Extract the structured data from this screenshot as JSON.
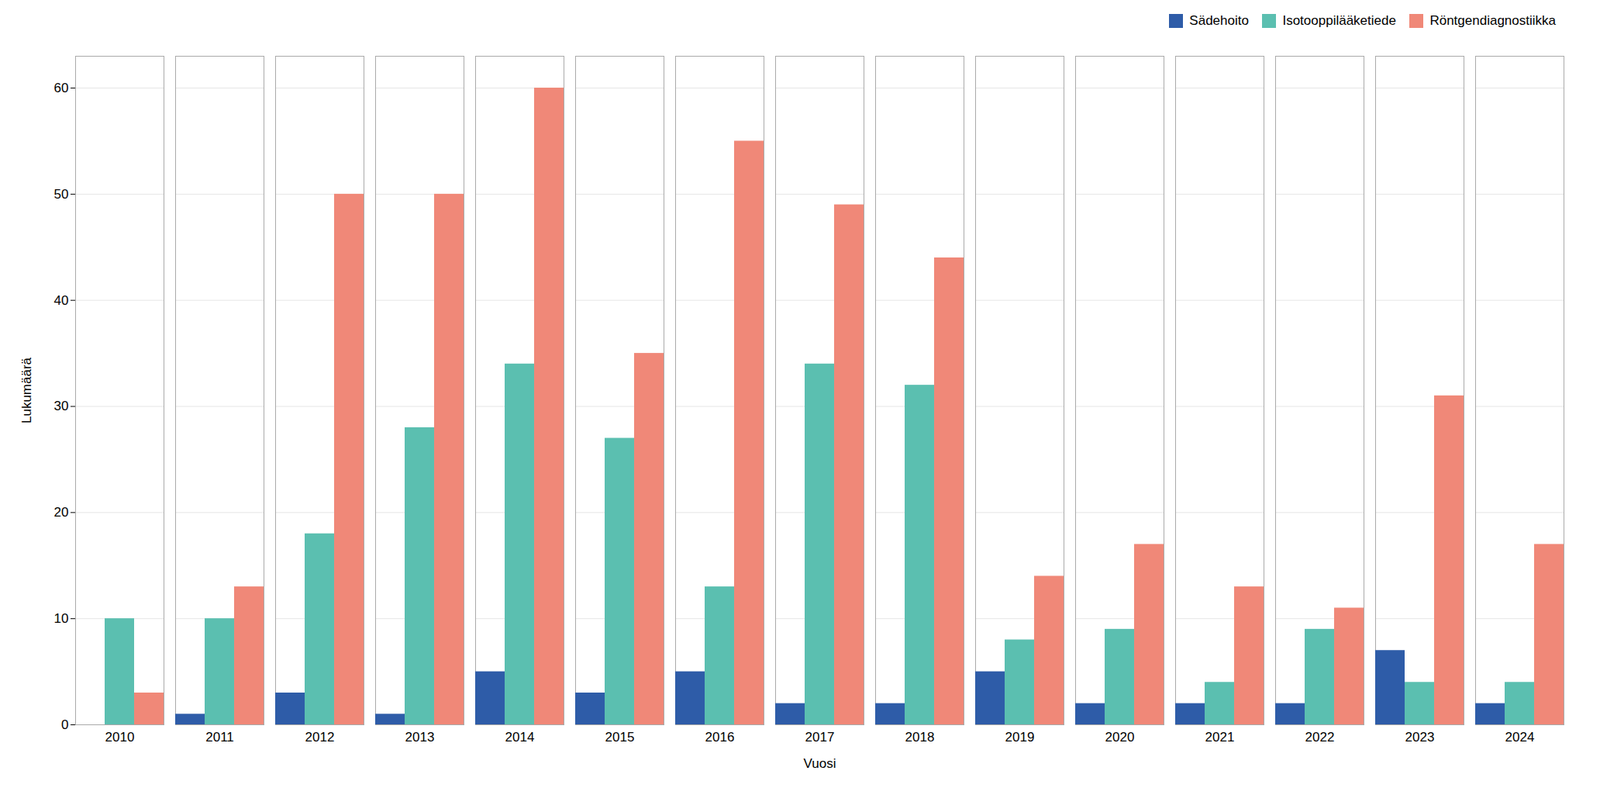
{
  "chart_data": {
    "type": "bar",
    "categories": [
      "2010",
      "2011",
      "2012",
      "2013",
      "2014",
      "2015",
      "2016",
      "2017",
      "2018",
      "2019",
      "2020",
      "2021",
      "2022",
      "2023",
      "2024"
    ],
    "series": [
      {
        "name": "Sädehoito",
        "color": "#2e5ca8",
        "values": [
          0,
          1,
          3,
          1,
          5,
          3,
          5,
          2,
          2,
          5,
          2,
          2,
          2,
          7,
          2
        ]
      },
      {
        "name": "Isotooppilääketiede",
        "color": "#5bbfb0",
        "values": [
          10,
          10,
          18,
          28,
          34,
          27,
          13,
          34,
          32,
          8,
          9,
          4,
          9,
          4,
          4
        ]
      },
      {
        "name": "Röntgendiagnostiikka",
        "color": "#f08878",
        "values": [
          3,
          13,
          50,
          50,
          60,
          35,
          55,
          49,
          44,
          14,
          17,
          13,
          11,
          31,
          17
        ]
      }
    ],
    "xlabel": "Vuosi",
    "ylabel": "Lukumäärä",
    "ylim": [
      0,
      63
    ],
    "yticks": [
      0,
      10,
      20,
      30,
      40,
      50,
      60
    ],
    "grid": true,
    "legend": "upper right"
  }
}
